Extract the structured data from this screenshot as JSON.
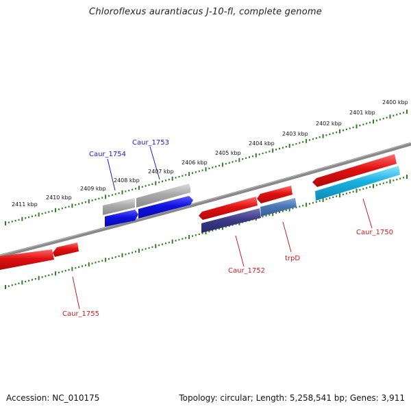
{
  "map": {
    "title": "Chloroflexus aurantiacus J-10-fl, complete genome",
    "accession": "Accession: NC_010175",
    "summary": "Topology: circular; Length: 5,258,541 bp; Genes: 3,911",
    "scale_labels": [
      "2411 kbp",
      "2410 kbp",
      "2409 kbp",
      "2408 kbp",
      "2407 kbp",
      "2406 kbp",
      "2405 kbp",
      "2404 kbp",
      "2403 kbp",
      "2402 kbp",
      "2401 kbp",
      "2400 kbp"
    ],
    "genes": [
      {
        "label": "Caur_1754",
        "strand": "plus"
      },
      {
        "label": "Caur_1753",
        "strand": "plus"
      },
      {
        "label": "Caur_1755",
        "strand": "minus"
      },
      {
        "label": "Caur_1752",
        "strand": "minus"
      },
      {
        "label": "trpD",
        "strand": "minus"
      },
      {
        "label": "Caur_1750",
        "strand": "minus"
      }
    ],
    "colors": {
      "plus_label": "#1a1acc",
      "minus_label": "#cc1a1a",
      "tick": "#2e7d1f",
      "backbone": "#808080",
      "red_gene": "#e01010",
      "blue_gene": "#1010e0",
      "gray_gene": "#a8a8a8",
      "navy_gene": "#3c3a86",
      "steel_gene": "#4a78b4",
      "cyan_gene": "#18b0e0"
    }
  }
}
